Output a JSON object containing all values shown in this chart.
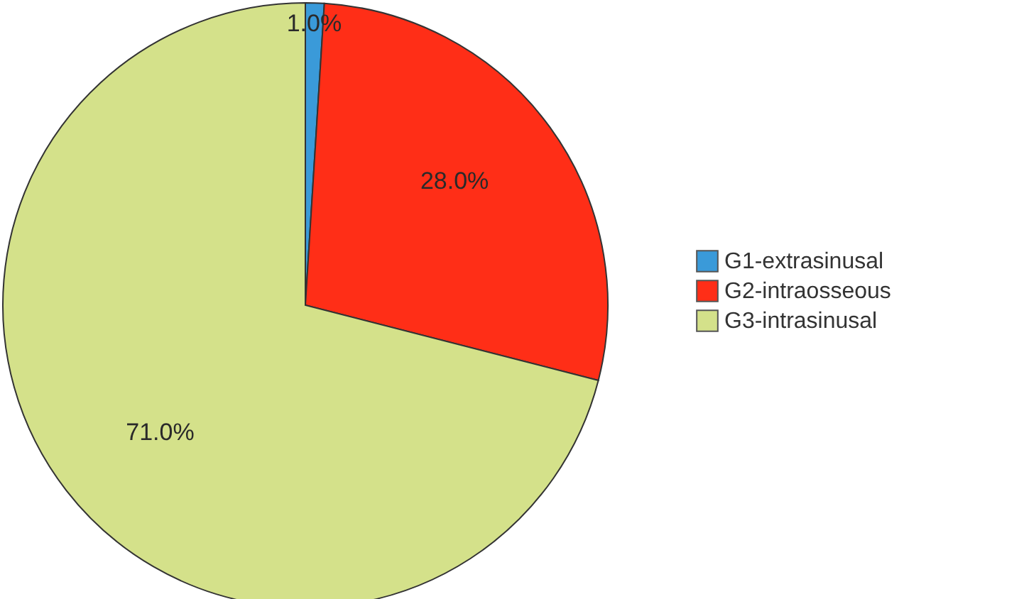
{
  "chart_data": {
    "type": "pie",
    "categories": [
      "G1-extrasinusal",
      "G2-intraosseous",
      "G3-intrasinusal"
    ],
    "values": [
      1,
      28,
      71
    ],
    "colors": [
      "#3a9ad9",
      "#ff2e17",
      "#d4e18a"
    ],
    "value_labels": [
      "1.0%",
      "28.0%",
      "71.0%"
    ],
    "legend": "right"
  }
}
